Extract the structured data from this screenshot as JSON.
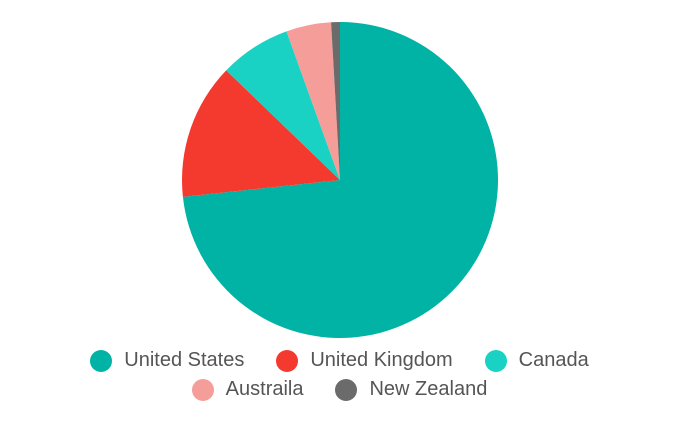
{
  "chart_data": {
    "type": "pie",
    "labels": [
      "United States",
      "United Kingdom",
      "Canada",
      "Austraila",
      "New Zealand"
    ],
    "values": [
      73.3,
      13.9,
      7.3,
      4.6,
      0.9
    ],
    "colors": [
      "#00b3a4",
      "#f4392f",
      "#19d2c3",
      "#f59d99",
      "#6b6b6b"
    ],
    "start_angle_deg": 0,
    "direction": "clockwise",
    "legend_position": "bottom"
  }
}
